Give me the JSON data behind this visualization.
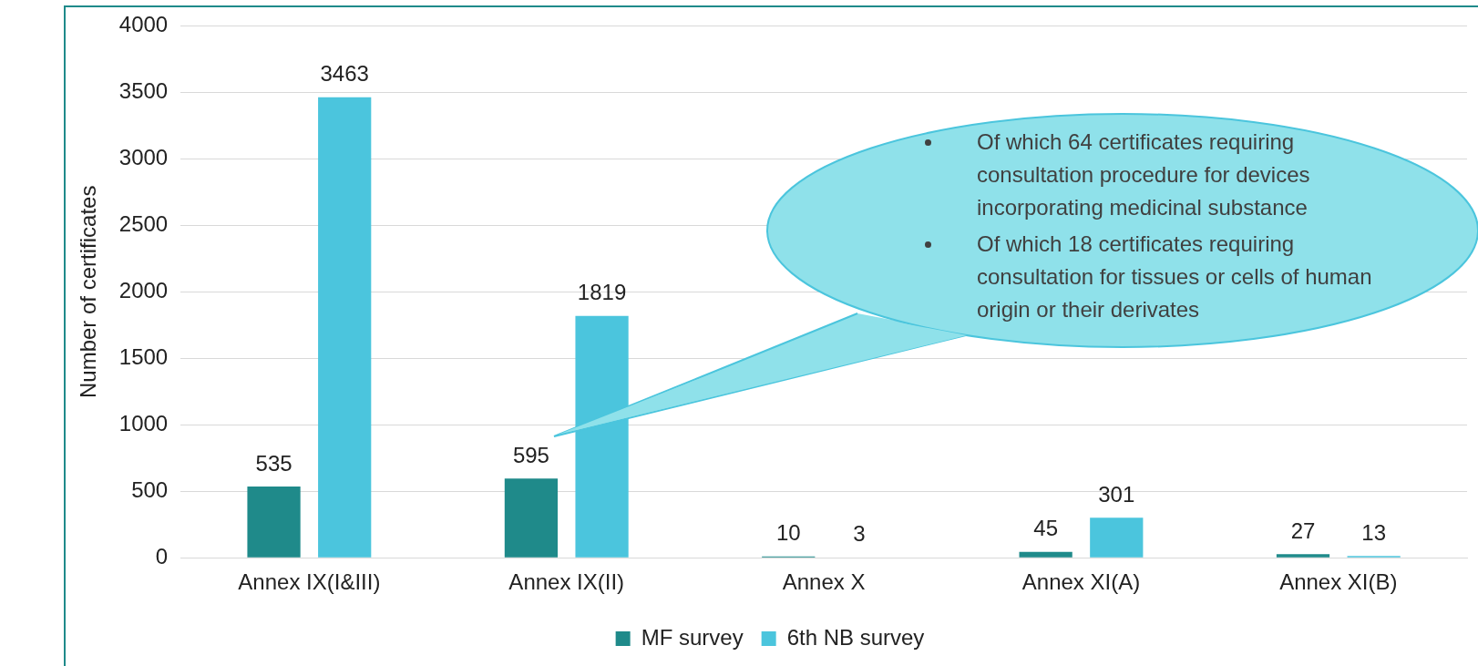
{
  "chart_data": {
    "type": "bar",
    "ylabel": "Number of certificates",
    "categories": [
      "Annex IX(I&III)",
      "Annex IX(II)",
      "Annex X",
      "Annex XI(A)",
      "Annex XI(B)"
    ],
    "series": [
      {
        "name": "MF survey",
        "color": "#1f8a8a",
        "values": [
          535,
          595,
          10,
          45,
          27
        ]
      },
      {
        "name": "6th NB survey",
        "color": "#4bc5dd",
        "values": [
          3463,
          1819,
          3,
          301,
          13
        ]
      }
    ],
    "ylim": [
      0,
      4000
    ],
    "yticks": [
      0,
      500,
      1000,
      1500,
      2000,
      2500,
      3000,
      3500,
      4000
    ],
    "grid": "y",
    "legend": "bottom",
    "data_labels": true,
    "annotations": [
      "Of which 64 certificates requiring consultation procedure for devices incorporating medicinal substance",
      "Of which 18 certificates requiring consultation for tissues or cells of human origin or their derivates"
    ]
  }
}
